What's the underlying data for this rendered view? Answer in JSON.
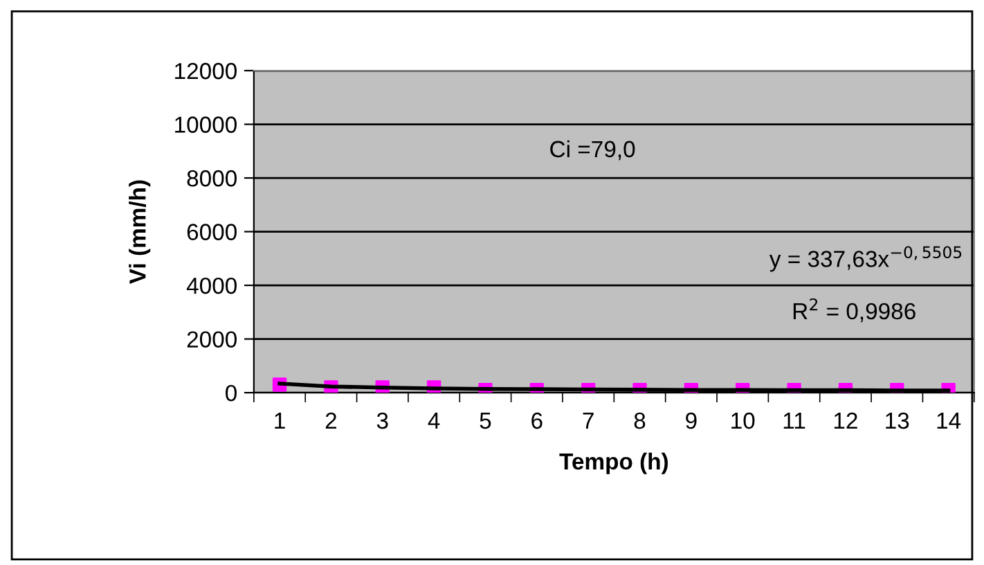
{
  "chart_data": {
    "type": "scatter",
    "xlabel": "Tempo (h)",
    "ylabel": "Vi (mm/h)",
    "categories": [
      "1",
      "2",
      "3",
      "4",
      "5",
      "6",
      "7",
      "8",
      "9",
      "10",
      "11",
      "12",
      "13",
      "14"
    ],
    "series": [
      {
        "color": "#ff00ff",
        "marker": "square",
        "values": [
          300,
          200,
          200,
          200,
          100,
          100,
          100,
          100,
          100,
          100,
          100,
          100,
          100,
          100
        ]
      },
      {
        "type": "line",
        "color": "#000000",
        "marker": "none",
        "line_style": "solid",
        "values": [
          340,
          230,
          190,
          160,
          140,
          130,
          120,
          110,
          100,
          100,
          90,
          90,
          80,
          80
        ]
      }
    ],
    "ylim": [
      0,
      12000
    ],
    "yticks": [
      0,
      2000,
      4000,
      6000,
      8000,
      10000,
      12000
    ],
    "grid": "y",
    "legend": false,
    "annotations": [
      "Ci =79,0",
      "y = 337,63x$^{−0,5505}$",
      "R$^{2}$ = 0,9986"
    ]
  }
}
